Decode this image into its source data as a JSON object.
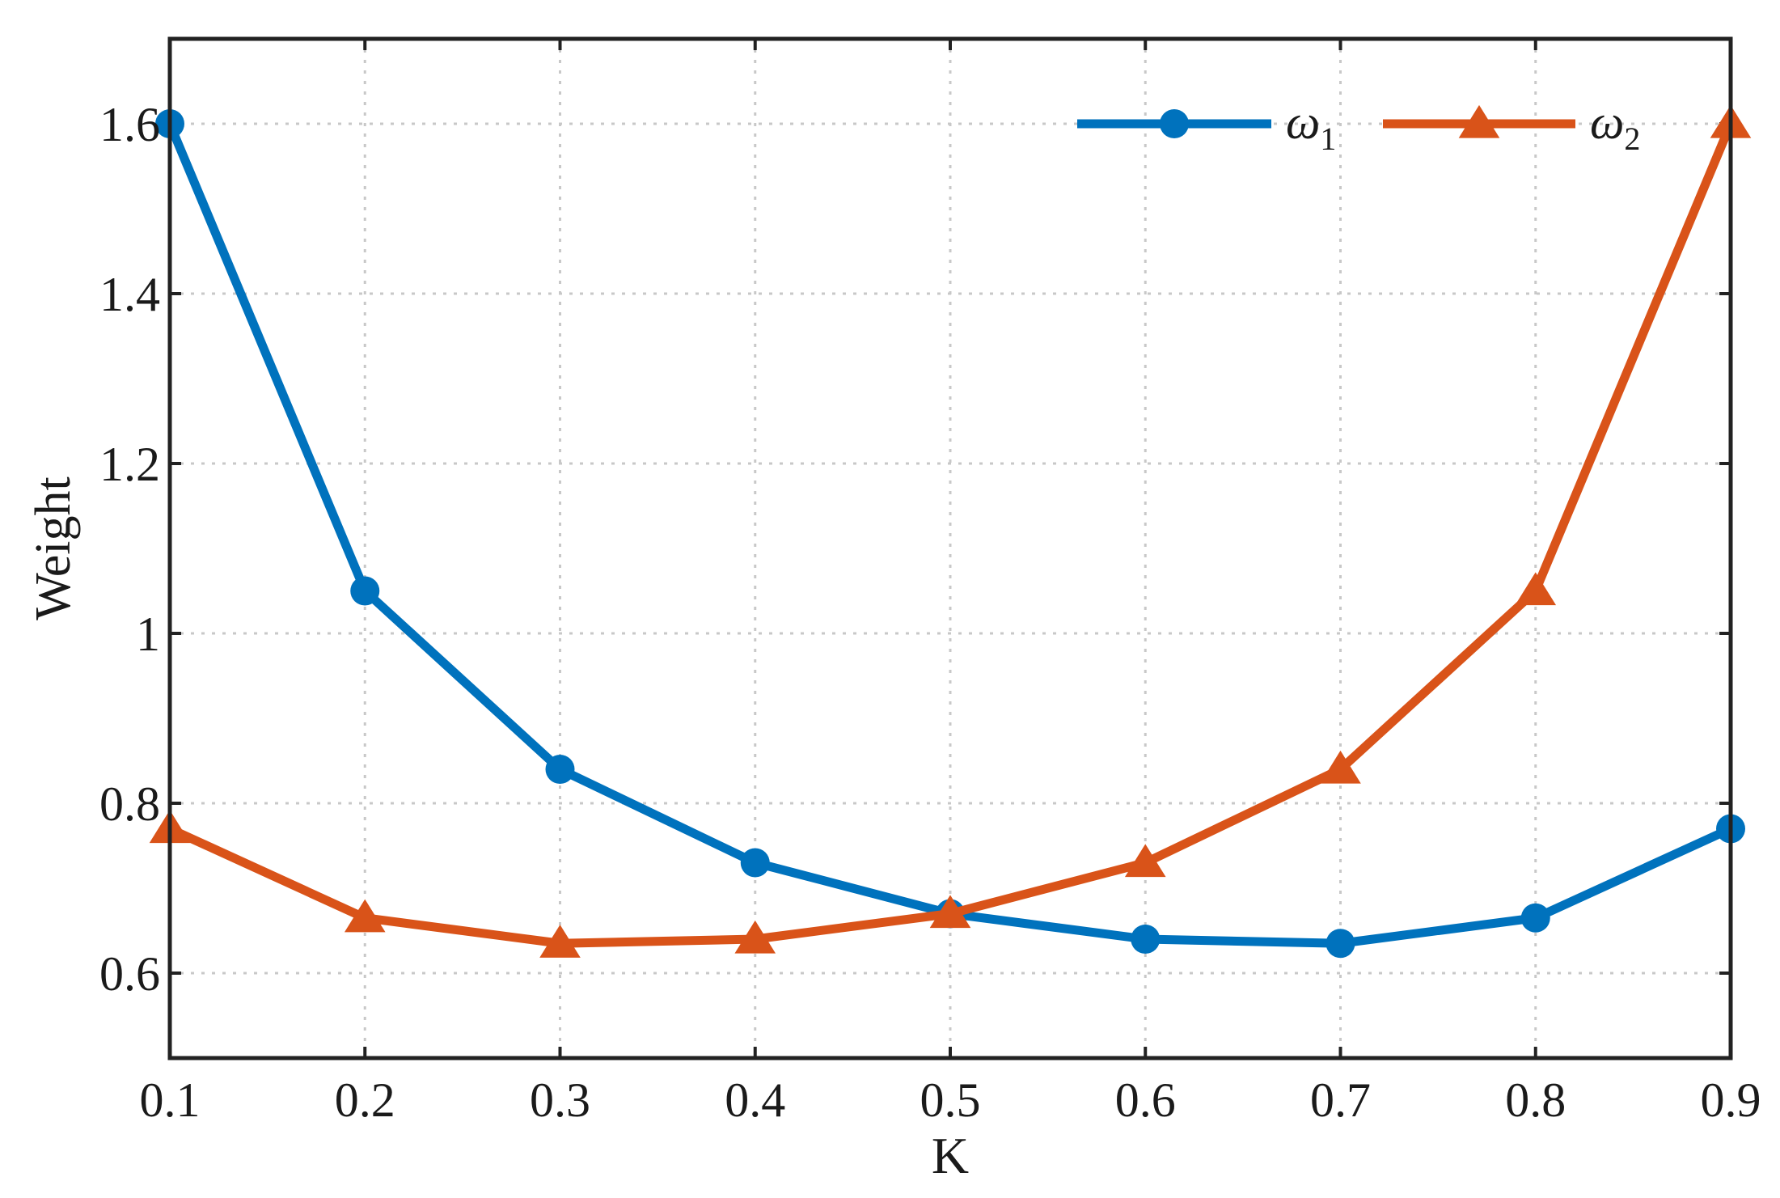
{
  "chart_data": {
    "type": "line",
    "xlabel": "K",
    "ylabel": "Weight",
    "x": [
      0.1,
      0.2,
      0.3,
      0.4,
      0.5,
      0.6,
      0.7,
      0.8,
      0.9
    ],
    "xlim": [
      0.1,
      0.9
    ],
    "ylim": [
      0.5,
      1.7
    ],
    "x_ticks": [
      "0.1",
      "0.2",
      "0.3",
      "0.4",
      "0.5",
      "0.6",
      "0.7",
      "0.8",
      "0.9"
    ],
    "y_ticks": [
      {
        "value": 0.6,
        "label": "0.6"
      },
      {
        "value": 0.8,
        "label": "0.8"
      },
      {
        "value": 1.0,
        "label": "1"
      },
      {
        "value": 1.2,
        "label": "1.2"
      },
      {
        "value": 1.4,
        "label": "1.4"
      },
      {
        "value": 1.6,
        "label": "1.6"
      }
    ],
    "grid": true,
    "legend_position": "top-right",
    "series": [
      {
        "name": "ω1",
        "name_base": "ω",
        "name_sub": "1",
        "marker": "circle",
        "color": "#0072BD",
        "values": [
          1.6,
          1.05,
          0.84,
          0.73,
          0.67,
          0.64,
          0.635,
          0.665,
          0.77
        ]
      },
      {
        "name": "ω2",
        "name_base": "ω",
        "name_sub": "2",
        "marker": "triangle",
        "color": "#D95319",
        "values": [
          0.77,
          0.665,
          0.635,
          0.64,
          0.67,
          0.73,
          0.84,
          1.05,
          1.6
        ]
      }
    ]
  }
}
